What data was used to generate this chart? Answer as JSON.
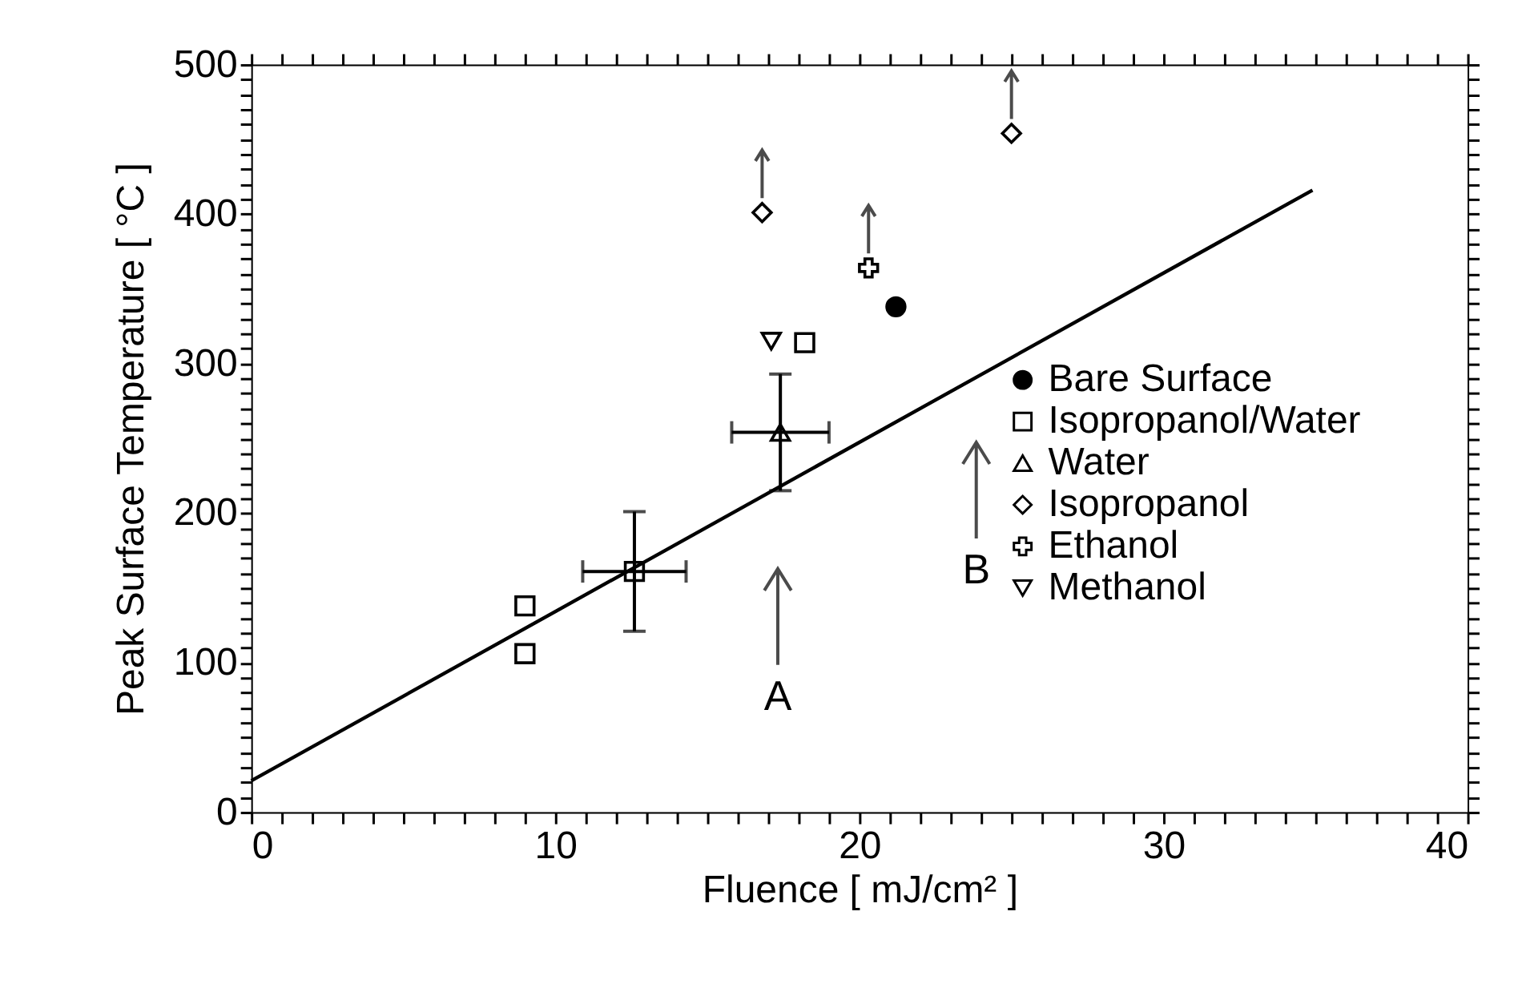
{
  "chart_data": {
    "type": "scatter",
    "xlabel": "Fluence [ mJ/cm² ]",
    "ylabel": "Peak Surface Temperature [ °C ]",
    "xlim": [
      0,
      40
    ],
    "ylim": [
      0,
      500
    ],
    "xticks": [
      0,
      {
        "value": 1,
        "label": null
      },
      {
        "value": 2,
        "label": null
      },
      {
        "value": 3,
        "label": null
      },
      {
        "value": 4,
        "label": null
      },
      {
        "value": 5,
        "label": null
      },
      {
        "value": 6,
        "label": null
      },
      {
        "value": 7,
        "label": null
      },
      {
        "value": 8,
        "label": null
      },
      {
        "value": 9,
        "label": null
      },
      10,
      {
        "value": 11,
        "label": null
      },
      {
        "value": 12,
        "label": null
      },
      {
        "value": 13,
        "label": null
      },
      {
        "value": 14,
        "label": null
      },
      {
        "value": 15,
        "label": null
      },
      {
        "value": 16,
        "label": null
      },
      {
        "value": 17,
        "label": null
      },
      {
        "value": 18,
        "label": null
      },
      {
        "value": 19,
        "label": null
      },
      20,
      {
        "value": 21,
        "label": null
      },
      {
        "value": 22,
        "label": null
      },
      {
        "value": 23,
        "label": null
      },
      {
        "value": 24,
        "label": null
      },
      {
        "value": 25,
        "label": null
      },
      {
        "value": 26,
        "label": null
      },
      {
        "value": 27,
        "label": null
      },
      {
        "value": 28,
        "label": null
      },
      {
        "value": 29,
        "label": null
      },
      30,
      {
        "value": 31,
        "label": null
      },
      {
        "value": 32,
        "label": null
      },
      {
        "value": 33,
        "label": null
      },
      {
        "value": 34,
        "label": null
      },
      {
        "value": 35,
        "label": null
      },
      {
        "value": 36,
        "label": null
      },
      {
        "value": 37,
        "label": null
      },
      {
        "value": 38,
        "label": null
      },
      {
        "value": 39,
        "label": null
      },
      40
    ],
    "yticks": [
      0,
      {
        "value": 10,
        "label": null
      },
      {
        "value": 20,
        "label": null
      },
      {
        "value": 30,
        "label": null
      },
      {
        "value": 40,
        "label": null
      },
      {
        "value": 50,
        "label": null
      },
      {
        "value": 60,
        "label": null
      },
      {
        "value": 70,
        "label": null
      },
      {
        "value": 80,
        "label": null
      },
      {
        "value": 90,
        "label": null
      },
      100,
      {
        "value": 110,
        "label": null
      },
      {
        "value": 120,
        "label": null
      },
      {
        "value": 130,
        "label": null
      },
      {
        "value": 140,
        "label": null
      },
      {
        "value": 150,
        "label": null
      },
      {
        "value": 160,
        "label": null
      },
      {
        "value": 170,
        "label": null
      },
      {
        "value": 180,
        "label": null
      },
      {
        "value": 190,
        "label": null
      },
      200,
      {
        "value": 210,
        "label": null
      },
      {
        "value": 220,
        "label": null
      },
      {
        "value": 230,
        "label": null
      },
      {
        "value": 240,
        "label": null
      },
      {
        "value": 250,
        "label": null
      },
      {
        "value": 260,
        "label": null
      },
      {
        "value": 270,
        "label": null
      },
      {
        "value": 280,
        "label": null
      },
      {
        "value": 290,
        "label": null
      },
      300,
      {
        "value": 310,
        "label": null
      },
      {
        "value": 320,
        "label": null
      },
      {
        "value": 330,
        "label": null
      },
      {
        "value": 340,
        "label": null
      },
      {
        "value": 350,
        "label": null
      },
      {
        "value": 360,
        "label": null
      },
      {
        "value": 370,
        "label": null
      },
      {
        "value": 380,
        "label": null
      },
      {
        "value": 390,
        "label": null
      },
      400,
      {
        "value": 410,
        "label": null
      },
      {
        "value": 420,
        "label": null
      },
      {
        "value": 430,
        "label": null
      },
      {
        "value": 440,
        "label": null
      },
      {
        "value": 450,
        "label": null
      },
      {
        "value": 460,
        "label": null
      },
      {
        "value": 470,
        "label": null
      },
      {
        "value": 480,
        "label": null
      },
      {
        "value": 490,
        "label": null
      },
      500
    ],
    "grid": false,
    "legend": "right",
    "series": [
      {
        "name": "Bare Surface",
        "color": "#000000",
        "marker": "circle",
        "x": [
          21.2
        ],
        "values": [
          338
        ]
      },
      {
        "name": "Isopropanol/Water",
        "color": "#000000",
        "marker": "square",
        "x": [
          9.0,
          9.0,
          12.6,
          18.2
        ],
        "values": [
          138,
          106,
          161,
          314
        ],
        "errors": [
          null,
          null,
          40,
          null
        ],
        "xerrors": [
          null,
          null,
          1.7,
          null
        ]
      },
      {
        "name": "Water",
        "color": "#000000",
        "marker": "triangle",
        "x": [
          17.4
        ],
        "values": [
          254
        ],
        "errors": [
          39
        ],
        "xerrors": [
          1.6
        ]
      },
      {
        "name": "Isopropanol",
        "color": "#000000",
        "marker": "diamond",
        "x": [
          16.8,
          25.0
        ],
        "values": [
          401,
          454
        ]
      },
      {
        "name": "Ethanol",
        "color": "#000000",
        "marker": "cross",
        "x": [
          20.3
        ],
        "values": [
          364
        ]
      },
      {
        "name": "Methanol",
        "color": "#000000",
        "marker": "triangle-down",
        "x": [
          17.1
        ],
        "values": [
          315
        ]
      },
      {
        "type": "line",
        "color": "#000000",
        "marker": "none",
        "line_style": "solid",
        "x": [
          0,
          34.9
        ],
        "values": [
          21,
          416
        ]
      }
    ],
    "annotations": [
      "A",
      "B"
    ]
  }
}
